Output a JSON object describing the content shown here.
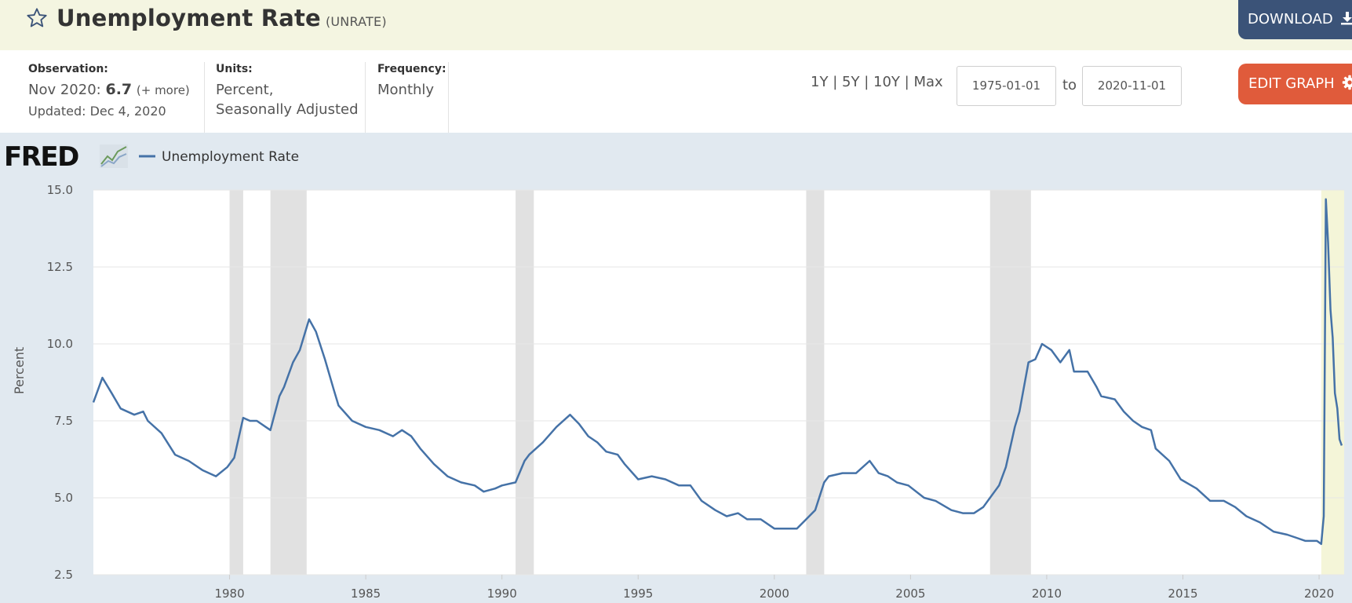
{
  "header": {
    "title": "Unemployment Rate",
    "series_id": "(UNRATE)",
    "download_label": "DOWNLOAD",
    "star_icon": "star-outline-icon",
    "download_icon": "download-icon"
  },
  "info": {
    "observation_label": "Observation:",
    "observation_date": "Nov 2020:",
    "observation_value": "6.7",
    "observation_more": "(+ more)",
    "updated": "Updated: Dec 4, 2020",
    "units_label": "Units:",
    "units_line1": "Percent,",
    "units_line2": "Seasonally Adjusted",
    "frequency_label": "Frequency:",
    "frequency_value": "Monthly"
  },
  "controls": {
    "range_1y": "1Y",
    "range_5y": "5Y",
    "range_10y": "10Y",
    "range_max": "Max",
    "range_sep": "|",
    "start_date": "1975-01-01",
    "to_label": "to",
    "end_date": "2020-11-01",
    "edit_graph_label": "EDIT GRAPH",
    "gear_icon": "gear-icon"
  },
  "chart_data": {
    "type": "line",
    "brand": "FRED",
    "legend_label": "Unemployment Rate",
    "ylabel": "Percent",
    "ylim": [
      2.5,
      15.0
    ],
    "xlim": [
      1975.0,
      2020.92
    ],
    "yticks": [
      "15.0",
      "12.5",
      "10.0",
      "7.5",
      "5.0",
      "2.5"
    ],
    "xticks": [
      "1980",
      "1985",
      "1990",
      "1995",
      "2000",
      "2005",
      "2010",
      "2015",
      "2020"
    ],
    "grid": true,
    "legend_position": "top-left",
    "line_color": "#4572a7",
    "recession_color": "#e1e1e1",
    "shading_note_color": "#f4f5d8",
    "recessions": [
      {
        "start": 1980.0,
        "end": 1980.5
      },
      {
        "start": 1981.5,
        "end": 1982.83
      },
      {
        "start": 1990.5,
        "end": 1991.17
      },
      {
        "start": 2001.17,
        "end": 2001.83
      },
      {
        "start": 2007.92,
        "end": 2009.42
      },
      {
        "start": 2020.08,
        "end": 2020.92
      }
    ],
    "series": [
      {
        "name": "Unemployment Rate",
        "points": [
          [
            1975.0,
            8.1
          ],
          [
            1975.33,
            8.9
          ],
          [
            1975.67,
            8.4
          ],
          [
            1976.0,
            7.9
          ],
          [
            1976.5,
            7.7
          ],
          [
            1976.83,
            7.8
          ],
          [
            1977.0,
            7.5
          ],
          [
            1977.5,
            7.1
          ],
          [
            1978.0,
            6.4
          ],
          [
            1978.5,
            6.2
          ],
          [
            1979.0,
            5.9
          ],
          [
            1979.5,
            5.7
          ],
          [
            1979.92,
            6.0
          ],
          [
            1980.17,
            6.3
          ],
          [
            1980.5,
            7.6
          ],
          [
            1980.75,
            7.5
          ],
          [
            1981.0,
            7.5
          ],
          [
            1981.33,
            7.3
          ],
          [
            1981.5,
            7.2
          ],
          [
            1981.83,
            8.3
          ],
          [
            1982.0,
            8.6
          ],
          [
            1982.33,
            9.4
          ],
          [
            1982.58,
            9.8
          ],
          [
            1982.92,
            10.8
          ],
          [
            1983.17,
            10.4
          ],
          [
            1983.5,
            9.5
          ],
          [
            1983.83,
            8.5
          ],
          [
            1984.0,
            8.0
          ],
          [
            1984.5,
            7.5
          ],
          [
            1985.0,
            7.3
          ],
          [
            1985.5,
            7.2
          ],
          [
            1986.0,
            7.0
          ],
          [
            1986.33,
            7.2
          ],
          [
            1986.67,
            7.0
          ],
          [
            1987.0,
            6.6
          ],
          [
            1987.5,
            6.1
          ],
          [
            1988.0,
            5.7
          ],
          [
            1988.5,
            5.5
          ],
          [
            1989.0,
            5.4
          ],
          [
            1989.33,
            5.2
          ],
          [
            1989.75,
            5.3
          ],
          [
            1990.0,
            5.4
          ],
          [
            1990.5,
            5.5
          ],
          [
            1990.83,
            6.2
          ],
          [
            1991.0,
            6.4
          ],
          [
            1991.5,
            6.8
          ],
          [
            1992.0,
            7.3
          ],
          [
            1992.5,
            7.7
          ],
          [
            1992.83,
            7.4
          ],
          [
            1993.17,
            7.0
          ],
          [
            1993.5,
            6.8
          ],
          [
            1993.83,
            6.5
          ],
          [
            1994.25,
            6.4
          ],
          [
            1994.5,
            6.1
          ],
          [
            1995.0,
            5.6
          ],
          [
            1995.5,
            5.7
          ],
          [
            1996.0,
            5.6
          ],
          [
            1996.5,
            5.4
          ],
          [
            1996.92,
            5.4
          ],
          [
            1997.33,
            4.9
          ],
          [
            1997.83,
            4.6
          ],
          [
            1998.25,
            4.4
          ],
          [
            1998.67,
            4.5
          ],
          [
            1999.0,
            4.3
          ],
          [
            1999.5,
            4.3
          ],
          [
            2000.0,
            4.0
          ],
          [
            2000.33,
            4.0
          ],
          [
            2000.83,
            4.0
          ],
          [
            2001.17,
            4.3
          ],
          [
            2001.5,
            4.6
          ],
          [
            2001.83,
            5.5
          ],
          [
            2002.0,
            5.7
          ],
          [
            2002.5,
            5.8
          ],
          [
            2003.0,
            5.8
          ],
          [
            2003.5,
            6.2
          ],
          [
            2003.83,
            5.8
          ],
          [
            2004.17,
            5.7
          ],
          [
            2004.5,
            5.5
          ],
          [
            2004.92,
            5.4
          ],
          [
            2005.5,
            5.0
          ],
          [
            2005.92,
            4.9
          ],
          [
            2006.5,
            4.6
          ],
          [
            2006.92,
            4.5
          ],
          [
            2007.33,
            4.5
          ],
          [
            2007.67,
            4.7
          ],
          [
            2007.92,
            5.0
          ],
          [
            2008.25,
            5.4
          ],
          [
            2008.5,
            6.0
          ],
          [
            2008.83,
            7.3
          ],
          [
            2009.0,
            7.8
          ],
          [
            2009.33,
            9.4
          ],
          [
            2009.58,
            9.5
          ],
          [
            2009.83,
            10.0
          ],
          [
            2010.17,
            9.8
          ],
          [
            2010.5,
            9.4
          ],
          [
            2010.83,
            9.8
          ],
          [
            2011.0,
            9.1
          ],
          [
            2011.5,
            9.1
          ],
          [
            2011.83,
            8.6
          ],
          [
            2012.0,
            8.3
          ],
          [
            2012.5,
            8.2
          ],
          [
            2012.83,
            7.8
          ],
          [
            2013.17,
            7.5
          ],
          [
            2013.5,
            7.3
          ],
          [
            2013.83,
            7.2
          ],
          [
            2014.0,
            6.6
          ],
          [
            2014.5,
            6.2
          ],
          [
            2014.92,
            5.6
          ],
          [
            2015.5,
            5.3
          ],
          [
            2016.0,
            4.9
          ],
          [
            2016.5,
            4.9
          ],
          [
            2016.92,
            4.7
          ],
          [
            2017.33,
            4.4
          ],
          [
            2017.83,
            4.2
          ],
          [
            2018.33,
            3.9
          ],
          [
            2018.83,
            3.8
          ],
          [
            2019.17,
            3.7
          ],
          [
            2019.5,
            3.6
          ],
          [
            2019.92,
            3.6
          ],
          [
            2020.08,
            3.5
          ],
          [
            2020.17,
            4.4
          ],
          [
            2020.25,
            14.7
          ],
          [
            2020.33,
            13.3
          ],
          [
            2020.42,
            11.1
          ],
          [
            2020.5,
            10.2
          ],
          [
            2020.58,
            8.4
          ],
          [
            2020.67,
            7.9
          ],
          [
            2020.75,
            6.9
          ],
          [
            2020.83,
            6.7
          ]
        ]
      }
    ]
  }
}
